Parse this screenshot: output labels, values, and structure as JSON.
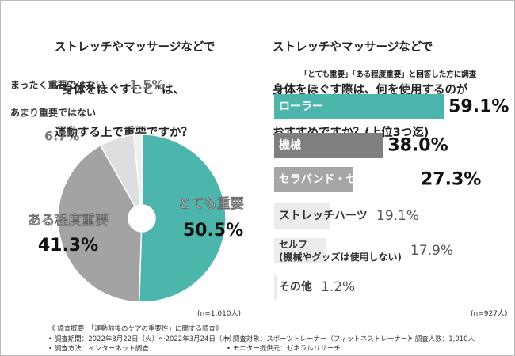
{
  "chart_data": [
    {
      "type": "pie",
      "title": [
        "ストレッチやマッサージなどで",
        "“身体をほぐすこと”は、",
        "運動する上で重要ですか？"
      ],
      "categories": [
        "とても重要",
        "ある程度重要",
        "あまり重要ではない",
        "まったく重要ではない"
      ],
      "values": [
        50.5,
        41.3,
        6.7,
        1.5
      ],
      "value_labels": [
        "50.5%",
        "41.3%",
        "6.7%",
        "1.5%"
      ],
      "colors": [
        "#4db6ac",
        "#a3a3a3",
        "#dedede",
        "#efefef"
      ],
      "note": "(n=1,010人)"
    },
    {
      "type": "hbar",
      "title": [
        "ストレッチやマッサージなどで",
        "身体をほぐす際は、何を使用するのが",
        "おすすめですか？(上位3つ迄)"
      ],
      "subtitle": "「とても重要」「ある程度重要」と回答した方に調査",
      "categories": [
        "ローラー",
        "機械",
        "セラバンド・セラチューブ",
        "ストレッチハーツ",
        "セルフ\n(機械やグッズは使用しない)",
        "その他"
      ],
      "values": [
        59.1,
        38.0,
        27.3,
        19.1,
        17.9,
        1.2
      ],
      "value_labels": [
        "59.1%",
        "38.0%",
        "27.3%",
        "19.1%",
        "17.9%",
        "1.2%"
      ],
      "colors": [
        "#4db6ac",
        "#7f7f7f",
        "#a6a6a6",
        "#ececec",
        "#ececec",
        "#ececec"
      ],
      "note": "(n=927人)"
    }
  ],
  "footer": {
    "heading": "《 調査概要：「運動前後のケアの重要性」に関する調査》",
    "items": [
      "調査期間：2022年3月22日（火）～2022年3月24日（木）",
      "調査方法：インターネット調査",
      "調査対象：スポーツトレーナー（フィットネストレーナー）",
      "モニター提供元：ゼネラルリサーチ",
      "調査人数：1,010人"
    ]
  }
}
